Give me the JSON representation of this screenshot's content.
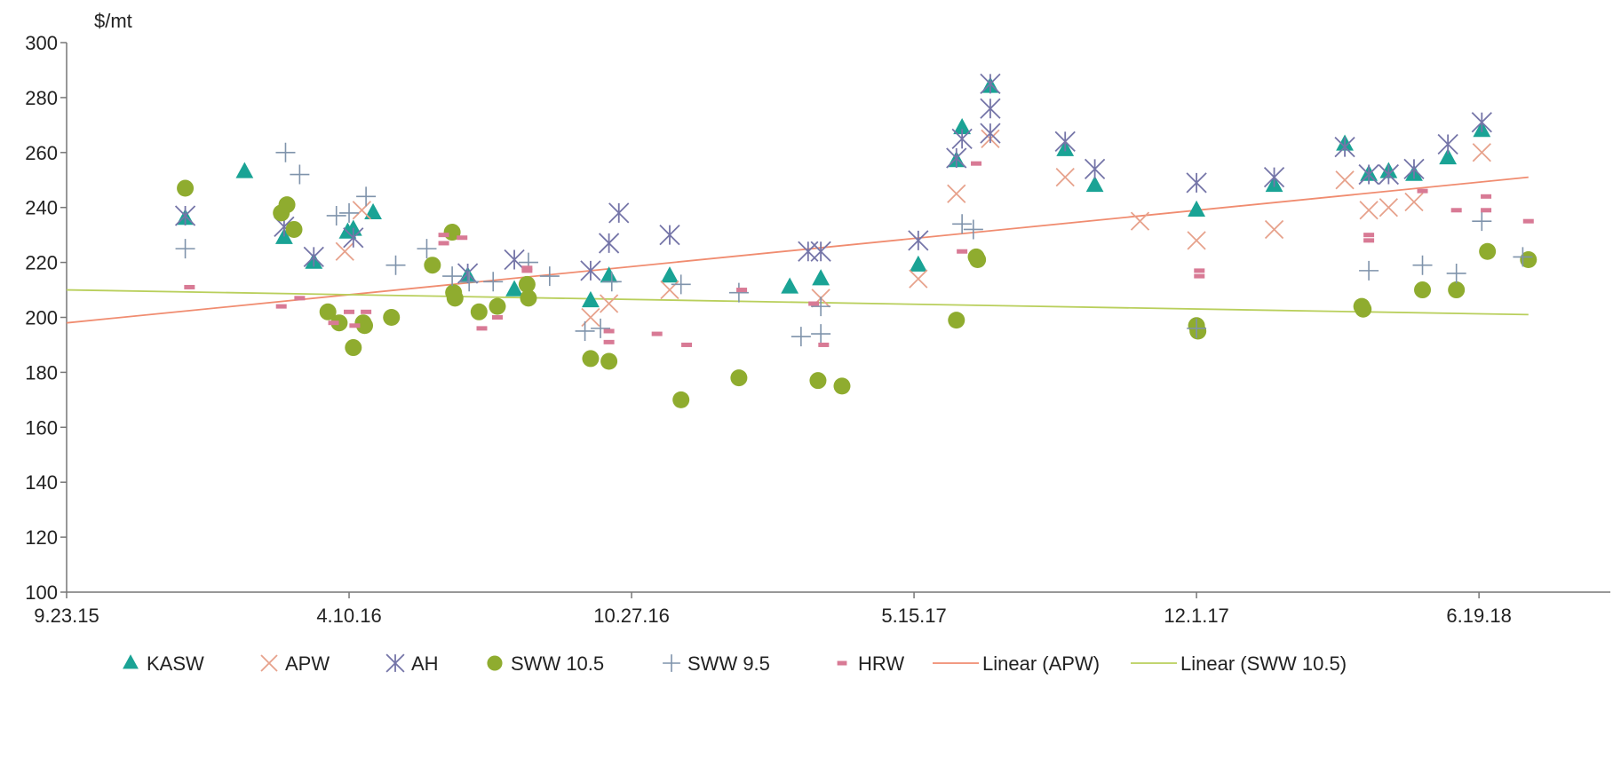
{
  "chart_data": {
    "type": "scatter",
    "title": "",
    "xlabel": "",
    "ylabel": "$/mt",
    "x_ticks": [
      "9.23.15",
      "4.10.16",
      "10.27.16",
      "5.15.17",
      "12.1.17",
      "6.19.18"
    ],
    "xlim": [
      "9.23.15",
      "2018-09-20"
    ],
    "ylim": [
      100,
      300
    ],
    "y_ticks": [
      100,
      120,
      140,
      160,
      180,
      200,
      220,
      240,
      260,
      280,
      300
    ],
    "grid": false,
    "legend_position": "bottom",
    "series": [
      {
        "name": "KASW",
        "marker": "triangle",
        "color": "#1aa395",
        "points": [
          [
            "2015-12-16",
            236
          ],
          [
            "2016-01-27",
            253
          ],
          [
            "2016-02-24",
            229
          ],
          [
            "2016-03-16",
            220
          ],
          [
            "2016-04-09",
            231
          ],
          [
            "2016-04-13",
            232
          ],
          [
            "2016-04-27",
            238
          ],
          [
            "2016-07-03",
            215
          ],
          [
            "2016-08-05",
            210
          ],
          [
            "2016-09-28",
            206
          ],
          [
            "2016-10-11",
            215
          ],
          [
            "2016-11-23",
            215
          ],
          [
            "2017-02-16",
            211
          ],
          [
            "2017-03-10",
            214
          ],
          [
            "2017-05-18",
            219
          ],
          [
            "2017-06-14",
            257
          ],
          [
            "2017-06-18",
            269
          ],
          [
            "2017-07-08",
            284
          ],
          [
            "2017-08-30",
            261
          ],
          [
            "2017-09-20",
            248
          ],
          [
            "2017-12-01",
            239
          ],
          [
            "2018-01-25",
            248
          ],
          [
            "2018-03-16",
            263
          ],
          [
            "2018-04-02",
            252
          ],
          [
            "2018-04-16",
            253
          ],
          [
            "2018-05-04",
            252
          ],
          [
            "2018-05-28",
            258
          ],
          [
            "2018-06-21",
            268
          ]
        ]
      },
      {
        "name": "APW",
        "marker": "x",
        "color": "#e7a28c",
        "points": [
          [
            "2016-04-07",
            224
          ],
          [
            "2016-04-19",
            239
          ],
          [
            "2016-09-28",
            200
          ],
          [
            "2016-10-11",
            205
          ],
          [
            "2016-11-23",
            210
          ],
          [
            "2017-03-10",
            207
          ],
          [
            "2017-05-18",
            214
          ],
          [
            "2017-06-14",
            245
          ],
          [
            "2017-07-08",
            265
          ],
          [
            "2017-08-30",
            251
          ],
          [
            "2017-10-22",
            235
          ],
          [
            "2017-12-01",
            228
          ],
          [
            "2018-01-25",
            232
          ],
          [
            "2018-03-16",
            250
          ],
          [
            "2018-04-02",
            239
          ],
          [
            "2018-04-16",
            240
          ],
          [
            "2018-05-04",
            242
          ],
          [
            "2018-06-21",
            260
          ]
        ]
      },
      {
        "name": "AH",
        "marker": "asterisk",
        "color": "#7575a8",
        "points": [
          [
            "2015-12-16",
            237
          ],
          [
            "2016-02-24",
            233
          ],
          [
            "2016-03-16",
            222
          ],
          [
            "2016-04-13",
            229
          ],
          [
            "2016-07-03",
            216
          ],
          [
            "2016-08-05",
            221
          ],
          [
            "2016-09-28",
            217
          ],
          [
            "2016-10-11",
            227
          ],
          [
            "2016-10-18",
            238
          ],
          [
            "2016-11-23",
            230
          ],
          [
            "2017-03-01",
            224
          ],
          [
            "2017-03-10",
            224
          ],
          [
            "2017-05-18",
            228
          ],
          [
            "2017-06-14",
            258
          ],
          [
            "2017-06-18",
            265
          ],
          [
            "2017-07-08",
            276
          ],
          [
            "2017-07-08",
            267
          ],
          [
            "2017-07-08",
            285
          ],
          [
            "2017-08-30",
            264
          ],
          [
            "2017-09-20",
            254
          ],
          [
            "2017-12-01",
            249
          ],
          [
            "2018-01-25",
            251
          ],
          [
            "2018-03-16",
            262
          ],
          [
            "2018-04-02",
            252
          ],
          [
            "2018-04-16",
            252
          ],
          [
            "2018-05-04",
            254
          ],
          [
            "2018-05-28",
            263
          ],
          [
            "2018-06-21",
            271
          ]
        ]
      },
      {
        "name": "SWW 10.5",
        "marker": "circle",
        "color": "#8fac2f",
        "points": [
          [
            "2015-12-16",
            247
          ],
          [
            "2016-02-22",
            238
          ],
          [
            "2016-02-26",
            241
          ],
          [
            "2016-03-02",
            232
          ],
          [
            "2016-03-26",
            202
          ],
          [
            "2016-04-03",
            198
          ],
          [
            "2016-04-13",
            189
          ],
          [
            "2016-04-20",
            198
          ],
          [
            "2016-04-21",
            197
          ],
          [
            "2016-05-10",
            200
          ],
          [
            "2016-06-08",
            219
          ],
          [
            "2016-06-22",
            231
          ],
          [
            "2016-06-23",
            209
          ],
          [
            "2016-06-24",
            207
          ],
          [
            "2016-07-11",
            202
          ],
          [
            "2016-07-24",
            204
          ],
          [
            "2016-08-14",
            212
          ],
          [
            "2016-08-15",
            207
          ],
          [
            "2016-09-28",
            185
          ],
          [
            "2016-10-11",
            184
          ],
          [
            "2016-12-01",
            170
          ],
          [
            "2017-01-11",
            178
          ],
          [
            "2017-03-08",
            177
          ],
          [
            "2017-03-25",
            175
          ],
          [
            "2017-06-14",
            199
          ],
          [
            "2017-06-28",
            222
          ],
          [
            "2017-06-29",
            221
          ],
          [
            "2017-12-01",
            197
          ],
          [
            "2017-12-02",
            195
          ],
          [
            "2018-03-28",
            204
          ],
          [
            "2018-03-29",
            203
          ],
          [
            "2018-05-10",
            210
          ],
          [
            "2018-06-03",
            210
          ],
          [
            "2018-06-25",
            224
          ],
          [
            "2018-07-24",
            221
          ]
        ]
      },
      {
        "name": "SWW 9.5",
        "marker": "plus",
        "color": "#7f93ab",
        "points": [
          [
            "2015-12-16",
            225
          ],
          [
            "2016-02-25",
            260
          ],
          [
            "2016-03-06",
            252
          ],
          [
            "2016-04-01",
            237
          ],
          [
            "2016-04-10",
            238
          ],
          [
            "2016-04-22",
            244
          ],
          [
            "2016-05-13",
            219
          ],
          [
            "2016-06-04",
            225
          ],
          [
            "2016-06-22",
            215
          ],
          [
            "2016-07-04",
            213
          ],
          [
            "2016-07-21",
            213
          ],
          [
            "2016-08-15",
            220
          ],
          [
            "2016-08-30",
            215
          ],
          [
            "2016-09-24",
            195
          ],
          [
            "2016-10-05",
            196
          ],
          [
            "2016-10-13",
            213
          ],
          [
            "2016-12-01",
            212
          ],
          [
            "2017-01-11",
            209
          ],
          [
            "2017-02-24",
            193
          ],
          [
            "2017-03-10",
            194
          ],
          [
            "2017-03-10",
            204
          ],
          [
            "2017-06-18",
            234
          ],
          [
            "2017-06-26",
            232
          ],
          [
            "2017-12-01",
            196
          ],
          [
            "2018-04-02",
            217
          ],
          [
            "2018-05-10",
            219
          ],
          [
            "2018-06-03",
            216
          ],
          [
            "2018-06-21",
            235
          ],
          [
            "2018-07-20",
            222
          ]
        ]
      },
      {
        "name": "HRW",
        "marker": "dash",
        "color": "#d87a95",
        "points": [
          [
            "2015-12-19",
            211
          ],
          [
            "2016-02-22",
            204
          ],
          [
            "2016-03-06",
            207
          ],
          [
            "2016-03-30",
            198
          ],
          [
            "2016-04-10",
            202
          ],
          [
            "2016-04-14",
            197
          ],
          [
            "2016-04-22",
            202
          ],
          [
            "2016-06-16",
            230
          ],
          [
            "2016-06-16",
            227
          ],
          [
            "2016-06-29",
            229
          ],
          [
            "2016-07-13",
            196
          ],
          [
            "2016-07-24",
            200
          ],
          [
            "2016-08-14",
            217
          ],
          [
            "2016-08-14",
            218
          ],
          [
            "2016-10-11",
            195
          ],
          [
            "2016-10-11",
            191
          ],
          [
            "2016-11-14",
            194
          ],
          [
            "2016-12-05",
            190
          ],
          [
            "2017-01-13",
            210
          ],
          [
            "2017-03-05",
            205
          ],
          [
            "2017-03-12",
            190
          ],
          [
            "2017-06-18",
            224
          ],
          [
            "2017-06-28",
            256
          ],
          [
            "2017-12-03",
            217
          ],
          [
            "2017-12-03",
            215
          ],
          [
            "2018-04-02",
            230
          ],
          [
            "2018-04-02",
            228
          ],
          [
            "2018-05-10",
            246
          ],
          [
            "2018-06-03",
            239
          ],
          [
            "2018-06-24",
            244
          ],
          [
            "2018-06-24",
            239
          ],
          [
            "2018-07-24",
            235
          ]
        ]
      }
    ],
    "trendlines": [
      {
        "name": "Linear (APW)",
        "color": "#f08c70",
        "start": [
          "9.23.15",
          198
        ],
        "end": [
          "2018-07-24",
          251
        ]
      },
      {
        "name": "Linear (SWW 10.5)",
        "color": "#b9cf5c",
        "start": [
          "9.23.15",
          210
        ],
        "end": [
          "2018-07-24",
          201
        ]
      }
    ],
    "legend": [
      "KASW",
      "APW",
      "AH",
      "SWW 10.5",
      "SWW 9.5",
      "HRW",
      "Linear (APW)",
      "Linear (SWW 10.5)"
    ]
  }
}
